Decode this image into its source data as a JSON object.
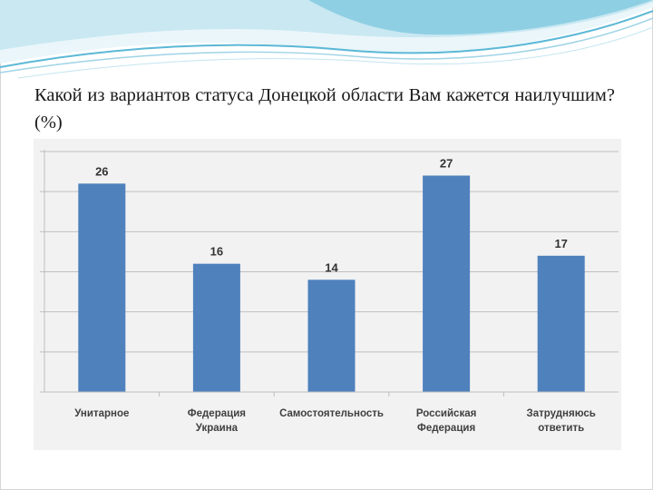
{
  "slide": {
    "title": "Какой из вариантов статуса Донецкой области Вам кажется наилучшим? (%)"
  },
  "colors": {
    "bar": "#4f81bd",
    "grid": "#bfbfbf",
    "panel": "#f2f2f2",
    "banner_light": "#dff0f6",
    "banner_mid": "#9fd3e6",
    "banner_dark": "#5bb8d6"
  },
  "chart_data": {
    "type": "bar",
    "categories": [
      [
        "Унитарное"
      ],
      [
        "Федерация",
        "Украина"
      ],
      [
        "Самостоятельность"
      ],
      [
        "Российская",
        "Федерация"
      ],
      [
        "Затрудняюсь",
        "ответить"
      ]
    ],
    "values": [
      26,
      16,
      14,
      27,
      17
    ],
    "data_labels": [
      "26",
      "16",
      "14",
      "27",
      "17"
    ],
    "ylim": [
      0,
      30
    ],
    "ytick_step": 5,
    "grid": true,
    "legend": "none",
    "xlabel": "",
    "ylabel": ""
  }
}
